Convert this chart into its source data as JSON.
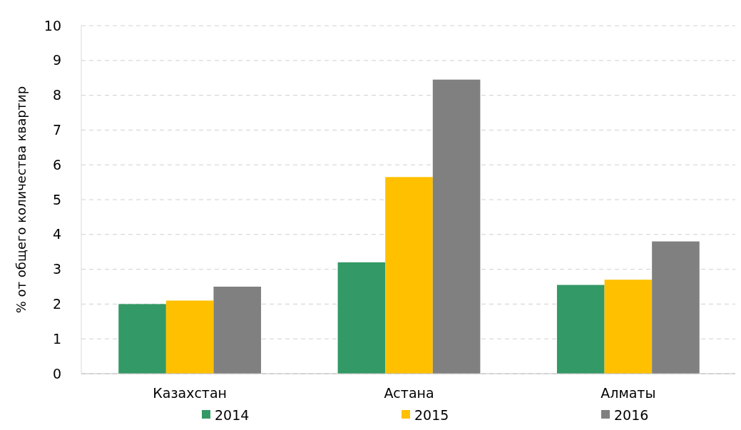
{
  "chart_data": {
    "type": "bar",
    "ylabel": "% от общего количества квартир",
    "categories": [
      "Казахстан",
      "Астана",
      "Алматы"
    ],
    "series": [
      {
        "name": "2014",
        "color": "#339966",
        "values": [
          2.0,
          3.2,
          2.55
        ]
      },
      {
        "name": "2015",
        "color": "#ffc000",
        "values": [
          2.1,
          5.65,
          2.7
        ]
      },
      {
        "name": "2016",
        "color": "#808080",
        "values": [
          2.5,
          8.45,
          3.8
        ]
      }
    ],
    "ylim": [
      0,
      10
    ],
    "yticks": [
      0,
      1,
      2,
      3,
      4,
      5,
      6,
      7,
      8,
      9,
      10
    ],
    "grid": "y",
    "legend": "bottom"
  }
}
